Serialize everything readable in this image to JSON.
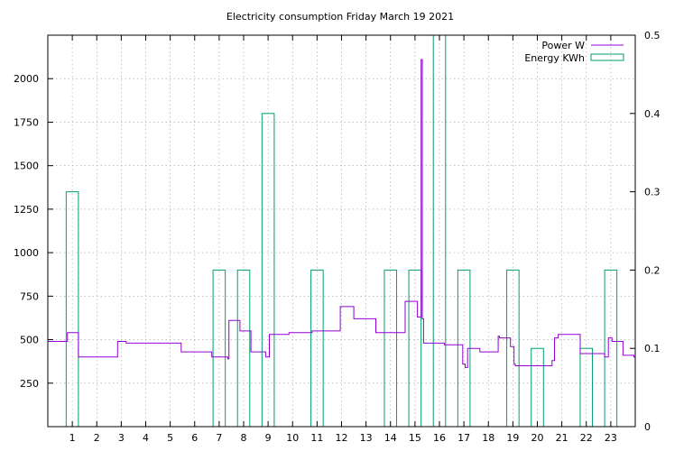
{
  "chart_data": {
    "type": "line",
    "title": "Electricity consumption Friday March 19 2021",
    "xlabel": "",
    "ylabel": "",
    "y2label": "",
    "xlim": [
      0,
      24
    ],
    "ylim": [
      0,
      2250
    ],
    "y2lim": [
      0,
      0.5
    ],
    "grid": true,
    "legend_position": "top-right",
    "x_ticks": [
      1,
      2,
      3,
      4,
      5,
      6,
      7,
      8,
      9,
      10,
      11,
      12,
      13,
      14,
      15,
      16,
      17,
      18,
      19,
      20,
      21,
      22,
      23
    ],
    "y_ticks": [
      250,
      500,
      750,
      1000,
      1250,
      1500,
      1750,
      2000
    ],
    "y2_ticks": [
      0,
      0.1,
      0.2,
      0.3,
      0.4,
      0.5
    ],
    "series": [
      {
        "name": "Power W",
        "axis": "y",
        "color": "#9400d3",
        "kind": "step-line",
        "x": [
          0,
          0.8,
          0.8,
          1.25,
          1.25,
          2.85,
          2.85,
          3.2,
          3.2,
          5.45,
          5.45,
          6.7,
          6.7,
          7.35,
          7.35,
          7.4,
          7.4,
          7.85,
          7.85,
          8.3,
          8.3,
          8.9,
          8.9,
          9.05,
          9.05,
          9.85,
          9.85,
          10.8,
          10.8,
          11.95,
          11.95,
          12.5,
          12.5,
          13.4,
          13.4,
          14.6,
          14.6,
          15.1,
          15.1,
          15.25,
          15.25,
          15.3,
          15.3,
          15.35,
          15.35,
          15.45,
          15.45,
          16.2,
          16.2,
          16.95,
          16.95,
          17.05,
          17.05,
          17.15,
          17.15,
          17.65,
          17.65,
          18.4,
          18.4,
          18.45,
          18.45,
          18.9,
          18.9,
          19.05,
          19.05,
          19.1,
          19.1,
          19.6,
          19.6,
          20.6,
          20.6,
          20.7,
          20.7,
          20.85,
          20.85,
          21.75,
          21.75,
          22.75,
          22.75,
          22.9,
          22.9,
          23.05,
          23.05,
          23.5,
          23.5,
          23.95,
          23.95,
          24
        ],
        "y": [
          490,
          490,
          540,
          540,
          400,
          400,
          490,
          490,
          480,
          480,
          430,
          430,
          400,
          400,
          390,
          390,
          610,
          610,
          550,
          550,
          430,
          430,
          400,
          400,
          530,
          530,
          540,
          540,
          550,
          550,
          690,
          690,
          620,
          620,
          540,
          540,
          720,
          720,
          630,
          630,
          2110,
          2110,
          620,
          620,
          480,
          480,
          480,
          480,
          470,
          470,
          360,
          360,
          340,
          340,
          450,
          450,
          430,
          430,
          520,
          520,
          510,
          510,
          460,
          460,
          360,
          360,
          350,
          350,
          350,
          350,
          380,
          380,
          510,
          510,
          530,
          530,
          420,
          420,
          400,
          400,
          510,
          510,
          490,
          490,
          410,
          410,
          400,
          400
        ]
      },
      {
        "name": "Energy KWh",
        "axis": "y2",
        "color": "#009e73",
        "kind": "bars",
        "bars": [
          {
            "hour": 1,
            "value": 0.3
          },
          {
            "hour": 7,
            "value": 0.2
          },
          {
            "hour": 8,
            "value": 0.2
          },
          {
            "hour": 9,
            "value": 0.4
          },
          {
            "hour": 11,
            "value": 0.2
          },
          {
            "hour": 14,
            "value": 0.2
          },
          {
            "hour": 15,
            "value": 0.2
          },
          {
            "hour": 16,
            "value": 0.5
          },
          {
            "hour": 17,
            "value": 0.2
          },
          {
            "hour": 19,
            "value": 0.2
          },
          {
            "hour": 20,
            "value": 0.1
          },
          {
            "hour": 22,
            "value": 0.1
          },
          {
            "hour": 23,
            "value": 0.2
          }
        ]
      }
    ]
  }
}
